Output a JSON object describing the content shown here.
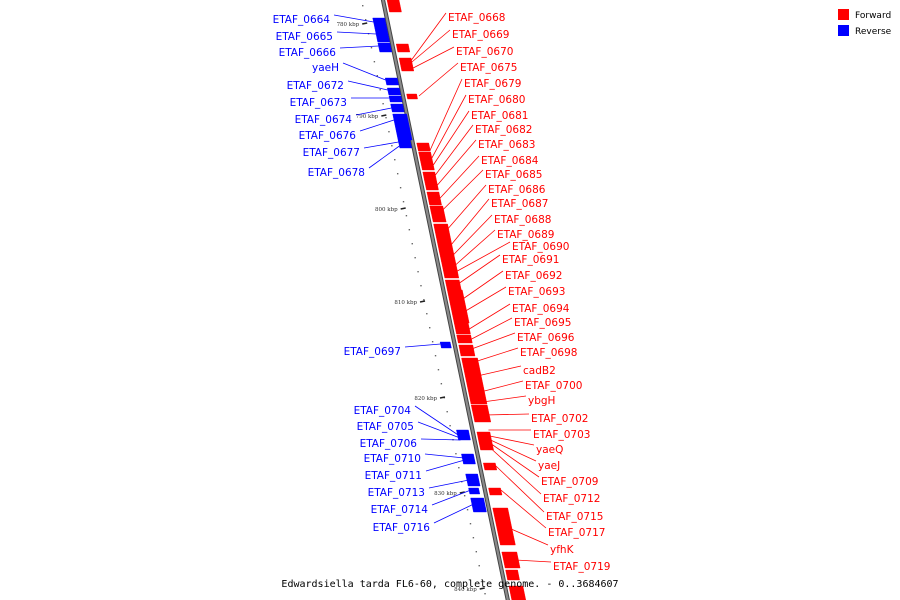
{
  "colors": {
    "forward": "#ff0000",
    "reverse": "#0000ff",
    "axis": "#8a8a8a",
    "axis_edge": "#444444",
    "tick": "#222222"
  },
  "legend": [
    {
      "label": "Forward",
      "color": "#ff0000"
    },
    {
      "label": "Reverse",
      "color": "#0000ff"
    }
  ],
  "caption": "Edwardsiella tarda FL6-60, complete genome. - 0..3684607",
  "tick_labels": [
    "780 kbp",
    "790 kbp",
    "800 kbp",
    "810 kbp",
    "820 kbp",
    "830 kbp",
    "840 kbp"
  ],
  "genes": {
    "forward": [
      "ETAF_0668",
      "ETAF_0669",
      "ETAF_0670",
      "ETAF_0675",
      "ETAF_0679",
      "ETAF_0680",
      "ETAF_0681",
      "ETAF_0682",
      "ETAF_0683",
      "ETAF_0684",
      "ETAF_0685",
      "ETAF_0686",
      "ETAF_0687",
      "ETAF_0688",
      "ETAF_0689",
      "ETAF_0690",
      "ETAF_0691",
      "ETAF_0692",
      "ETAF_0693",
      "ETAF_0694",
      "ETAF_0695",
      "ETAF_0696",
      "ETAF_0698",
      "cadB2",
      "ETAF_0700",
      "ybgH",
      "ETAF_0702",
      "ETAF_0703",
      "yaeQ",
      "yaeJ",
      "ETAF_0709",
      "ETAF_0712",
      "ETAF_0715",
      "ETAF_0717",
      "yfhK",
      "ETAF_0719"
    ],
    "reverse": [
      "ETAF_0664",
      "ETAF_0665",
      "ETAF_0666",
      "yaeH",
      "ETAF_0672",
      "ETAF_0673",
      "ETAF_0674",
      "ETAF_0676",
      "ETAF_0677",
      "ETAF_0678",
      "ETAF_0697",
      "ETAF_0704",
      "ETAF_0705",
      "ETAF_0706",
      "ETAF_0710",
      "ETAF_0711",
      "ETAF_0713",
      "ETAF_0714",
      "ETAF_0716"
    ]
  }
}
